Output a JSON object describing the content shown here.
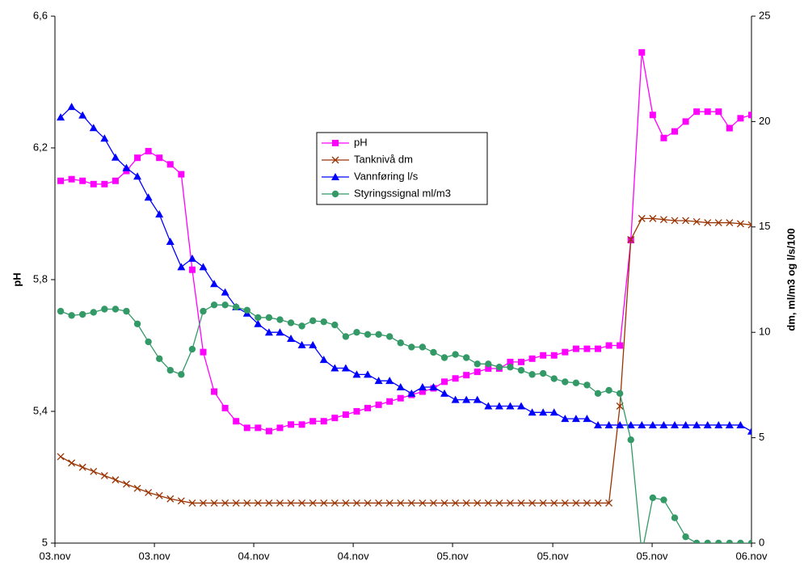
{
  "chart_data": {
    "type": "line",
    "y_label": "pH",
    "y2_label": "dm, ml/m3 og l/s/100",
    "x": [
      0,
      1,
      2,
      3,
      4,
      5,
      6,
      7,
      8,
      9,
      10,
      11,
      12,
      13,
      14,
      15,
      16,
      17,
      18,
      19,
      20,
      21,
      22,
      23,
      24,
      25,
      26,
      27,
      28,
      29,
      30,
      31,
      32,
      33,
      34,
      35,
      36,
      37,
      38,
      39,
      40,
      41,
      42,
      43,
      44,
      45,
      46,
      47,
      48,
      49,
      50,
      51,
      52,
      53,
      54,
      55,
      56,
      57,
      58,
      59,
      60,
      61,
      62,
      63
    ],
    "xlim": [
      -0.52,
      63
    ],
    "xticks": [
      {
        "value": -0.52,
        "label": "03.nov"
      },
      {
        "value": 8.55,
        "label": "03.nov"
      },
      {
        "value": 17.61,
        "label": "04.nov"
      },
      {
        "value": 26.68,
        "label": "04.nov"
      },
      {
        "value": 35.74,
        "label": "05.nov"
      },
      {
        "value": 44.88,
        "label": "05.nov"
      },
      {
        "value": 53.94,
        "label": "05.nov"
      },
      {
        "value": 63,
        "label": "06.nov"
      }
    ],
    "ylim": [
      5,
      6.6
    ],
    "yticks": [
      5,
      {
        "value": 5.4,
        "label": "5,4"
      },
      {
        "value": 5.8,
        "label": "5,8"
      },
      {
        "value": 6.2,
        "label": "6,2"
      },
      {
        "value": 6.6,
        "label": "6,6"
      }
    ],
    "y2lim": [
      0,
      25
    ],
    "y2ticks": [
      0,
      5,
      10,
      15,
      20,
      25
    ],
    "legend": "center",
    "series": [
      {
        "name": "pH",
        "color": "#ff00ff",
        "marker": "square",
        "axis": "y",
        "values": [
          6.1,
          6.105,
          6.1,
          6.09,
          6.09,
          6.1,
          6.13,
          6.17,
          6.19,
          6.17,
          6.15,
          6.12,
          5.83,
          5.58,
          5.46,
          5.41,
          5.37,
          5.35,
          5.35,
          5.34,
          5.35,
          5.36,
          5.36,
          5.37,
          5.37,
          5.38,
          5.39,
          5.4,
          5.41,
          5.42,
          5.43,
          5.44,
          5.45,
          5.46,
          5.47,
          5.49,
          5.5,
          5.51,
          5.52,
          5.53,
          5.53,
          5.55,
          5.55,
          5.56,
          5.57,
          5.57,
          5.58,
          5.59,
          5.59,
          5.59,
          5.6,
          5.6,
          5.92,
          6.49,
          6.3,
          6.23,
          6.25,
          6.28,
          6.31,
          6.31,
          6.31,
          6.26,
          6.29,
          6.3
        ]
      },
      {
        "name": "Tanknivå dm",
        "color": "#993300",
        "marker": "x",
        "axis": "y2",
        "values": [
          4.1,
          3.8,
          3.6,
          3.4,
          3.2,
          3.0,
          2.8,
          2.6,
          2.4,
          2.25,
          2.1,
          2.0,
          1.9,
          1.9,
          1.9,
          1.9,
          1.9,
          1.9,
          1.9,
          1.9,
          1.9,
          1.9,
          1.9,
          1.9,
          1.9,
          1.9,
          1.9,
          1.9,
          1.9,
          1.9,
          1.9,
          1.9,
          1.9,
          1.9,
          1.9,
          1.9,
          1.9,
          1.9,
          1.9,
          1.9,
          1.9,
          1.9,
          1.9,
          1.9,
          1.9,
          1.9,
          1.9,
          1.9,
          1.9,
          1.9,
          1.9,
          6.5,
          14.4,
          15.4,
          15.4,
          15.35,
          15.3,
          15.3,
          15.25,
          15.2,
          15.2,
          15.2,
          15.15,
          15.1
        ]
      },
      {
        "name": "Vannføring l/s",
        "color": "#0000ff",
        "marker": "triangle",
        "axis": "y2",
        "values": [
          20.2,
          20.7,
          20.3,
          19.7,
          19.2,
          18.3,
          17.8,
          17.4,
          16.4,
          15.6,
          14.3,
          13.1,
          13.5,
          13.1,
          12.3,
          11.9,
          11.2,
          10.9,
          10.4,
          10.0,
          10.0,
          9.7,
          9.4,
          9.4,
          8.7,
          8.3,
          8.3,
          8.0,
          8.0,
          7.7,
          7.7,
          7.4,
          7.1,
          7.4,
          7.4,
          7.1,
          6.8,
          6.8,
          6.8,
          6.5,
          6.5,
          6.5,
          6.5,
          6.2,
          6.2,
          6.2,
          5.9,
          5.9,
          5.9,
          5.6,
          5.6,
          5.6,
          5.6,
          5.6,
          5.6,
          5.6,
          5.6,
          5.6,
          5.6,
          5.6,
          5.6,
          5.6,
          5.6,
          5.3
        ]
      },
      {
        "name": "Styringssignal ml/m3",
        "color": "#339966",
        "marker": "circle",
        "axis": "y2",
        "values": [
          11.0,
          10.8,
          10.85,
          10.95,
          11.1,
          11.1,
          11.0,
          10.4,
          9.55,
          8.75,
          8.2,
          8.0,
          9.2,
          11.0,
          11.3,
          11.3,
          11.2,
          11.05,
          10.7,
          10.7,
          10.6,
          10.45,
          10.3,
          10.55,
          10.5,
          10.35,
          9.8,
          10.0,
          9.9,
          9.9,
          9.8,
          9.5,
          9.3,
          9.3,
          9.05,
          8.8,
          8.95,
          8.8,
          8.5,
          8.5,
          8.35,
          8.35,
          8.2,
          8.0,
          8.05,
          7.8,
          7.65,
          7.6,
          7.5,
          7.1,
          7.25,
          7.1,
          4.9,
          -0.5,
          2.15,
          2.05,
          1.2,
          0.3,
          0,
          0,
          0,
          0,
          0,
          0
        ]
      }
    ]
  }
}
